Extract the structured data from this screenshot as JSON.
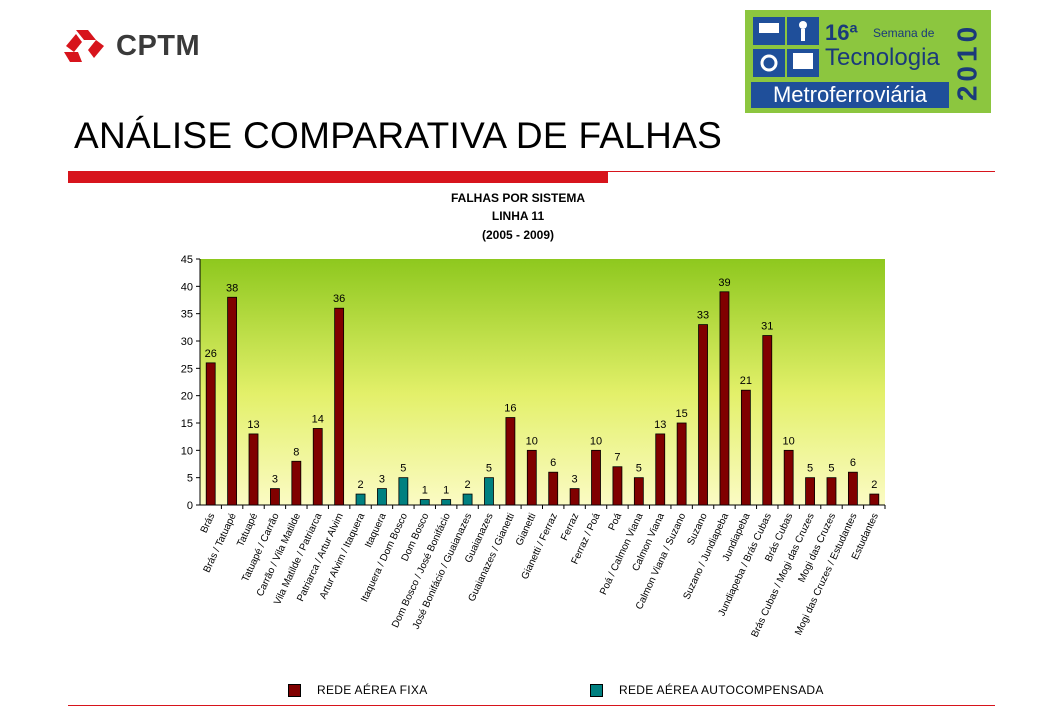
{
  "brand": {
    "name": "CPTM",
    "logo_icon": "cptm-logo-icon"
  },
  "event_badge": {
    "edition": "16ª",
    "line1": "Semana de",
    "line2": "Tecnologia",
    "line3": "Metroferroviária",
    "year": "2010",
    "colors": {
      "background": "#8cc63f",
      "text": "#1a3a7a",
      "band": "#1f4f9a"
    }
  },
  "page": {
    "title": "ANÁLISE COMPARATIVA DE FALHAS"
  },
  "chart_data": {
    "type": "bar",
    "title": "FALHAS POR SISTEMA",
    "subtitle": "LINHA 11",
    "subtitle2": "(2005 - 2009)",
    "ylim": [
      0,
      45
    ],
    "yticks": [
      0,
      5,
      10,
      15,
      20,
      25,
      30,
      35,
      40,
      45
    ],
    "grid": false,
    "legend_position": "bottom",
    "categories": [
      "Brás",
      "Brás / Tatuapé",
      "Tatuapé",
      "Tatuapé / Carrão",
      "Carrão / Vila Matilde",
      "Vila Matilde / Patriarca",
      "Patriarca / Artur Alvim",
      "Artur Alvim / Itaquera",
      "Itaquera",
      "Itaquera / Dom Bosco",
      "Dom Bosco",
      "Dom Bosco / José Bonifácio",
      "José Bonifácio / Guaianazes",
      "Guaianazes",
      "Guaianazes / Gianetti",
      "Gianetti",
      "Gianetti / Ferraz",
      "Ferraz",
      "Ferraz / Poá",
      "Poá",
      "Poá / Calmon Viana",
      "Calmon Viana",
      "Calmon Viana / Suzano",
      "Suzano",
      "Suzano / Jundiapeba",
      "Jundiapeba",
      "Jundiapeba / Brás Cubas",
      "Brás Cubas",
      "Brás Cubas / Mogi das Cruzes",
      "Mogi das Cruzes",
      "Mogi das Cruzes / Estudantes",
      "Estudantes"
    ],
    "values": [
      26,
      38,
      13,
      3,
      8,
      14,
      36,
      2,
      3,
      5,
      1,
      1,
      2,
      5,
      16,
      10,
      6,
      3,
      10,
      7,
      5,
      13,
      15,
      33,
      39,
      21,
      31,
      10,
      5,
      5,
      6,
      2
    ],
    "series_index": [
      0,
      0,
      0,
      0,
      0,
      0,
      0,
      1,
      1,
      1,
      1,
      1,
      1,
      1,
      0,
      0,
      0,
      0,
      0,
      0,
      0,
      0,
      0,
      0,
      0,
      0,
      0,
      0,
      0,
      0,
      0,
      0
    ],
    "series": [
      {
        "name": "REDE AÉREA FIXA",
        "color": "#800000"
      },
      {
        "name": "REDE AÉREA AUTOCOMPENSADA",
        "color": "#008080"
      }
    ]
  }
}
